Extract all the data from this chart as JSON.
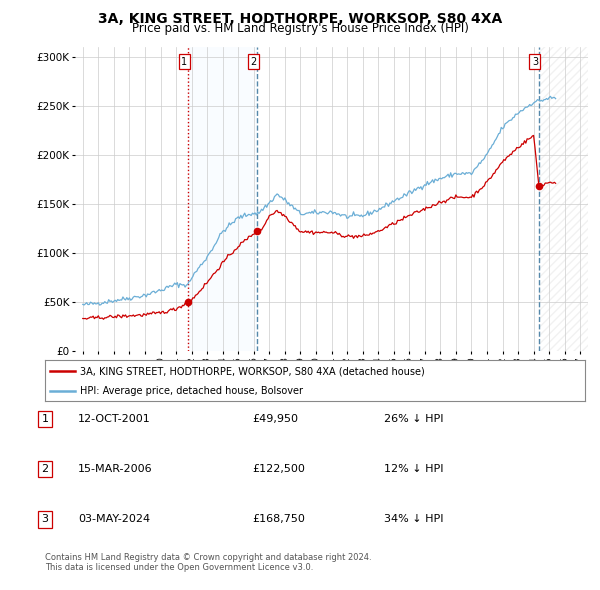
{
  "title": "3A, KING STREET, HODTHORPE, WORKSOP, S80 4XA",
  "subtitle": "Price paid vs. HM Land Registry's House Price Index (HPI)",
  "legend_property": "3A, KING STREET, HODTHORPE, WORKSOP, S80 4XA (detached house)",
  "legend_hpi": "HPI: Average price, detached house, Bolsover",
  "sales": [
    {
      "num": 1,
      "date": "12-OCT-2001",
      "price": 49950,
      "pct": "26% ↓ HPI",
      "year": 2001.78
    },
    {
      "num": 2,
      "date": "15-MAR-2006",
      "price": 122500,
      "pct": "12% ↓ HPI",
      "year": 2006.21
    },
    {
      "num": 3,
      "date": "03-MAY-2024",
      "price": 168750,
      "pct": "34% ↓ HPI",
      "year": 2024.34
    }
  ],
  "footnote1": "Contains HM Land Registry data © Crown copyright and database right 2024.",
  "footnote2": "This data is licensed under the Open Government Licence v3.0.",
  "ylim": [
    0,
    310000
  ],
  "yticks": [
    0,
    50000,
    100000,
    150000,
    200000,
    250000,
    300000
  ],
  "ytick_labels": [
    "£0",
    "£50K",
    "£100K",
    "£150K",
    "£200K",
    "£250K",
    "£300K"
  ],
  "hpi_color": "#6baed6",
  "sale_color": "#cc0000",
  "vline1_color": "#cc0000",
  "vline1_style": "dotted",
  "vline23_color": "#5588aa",
  "vline23_style": "dashed",
  "shade_color": "#ddeeff",
  "hatch_color": "#cccccc",
  "background_color": "#ffffff",
  "grid_color": "#cccccc"
}
